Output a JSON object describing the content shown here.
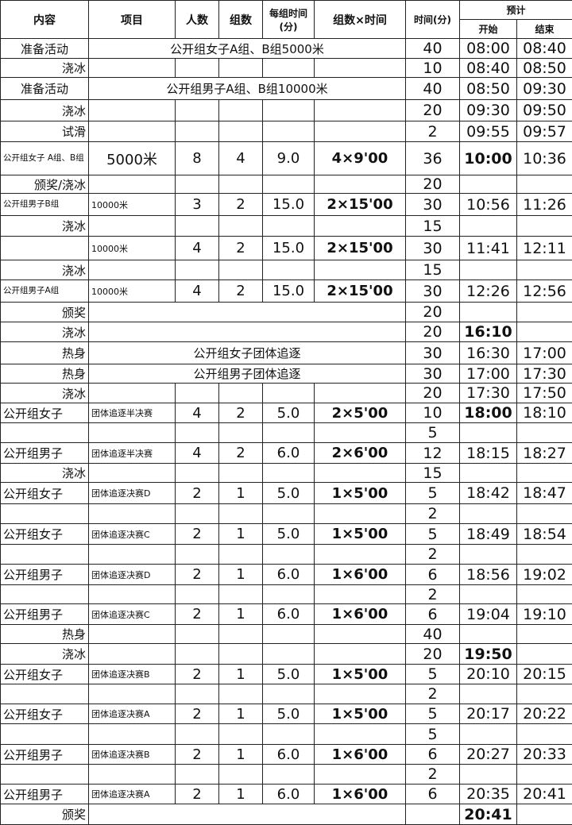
{
  "header": {
    "content": "内容",
    "item": "项目",
    "people": "人数",
    "groups": "组数",
    "per_group_time_1": "每组时间",
    "per_group_time_2": "(分)",
    "groups_x_time": "组数×时间",
    "time": "时间(分)",
    "estimate": "预计",
    "start": "开始",
    "end": "结束"
  },
  "rows": [
    {
      "content": "准备活动",
      "event": "公开组女子A组、B组5000米",
      "time": "40",
      "start": "08:00",
      "end": "08:40"
    },
    {
      "content": "浇冰",
      "time": "10",
      "start": "08:40",
      "end": "08:50"
    },
    {
      "content": "准备活动",
      "event": "公开组男子A组、B组10000米",
      "time": "40",
      "start": "08:50",
      "end": "09:30"
    },
    {
      "content": "浇冰",
      "time": "20",
      "start": "09:30",
      "end": "09:50"
    },
    {
      "content": "试滑",
      "time": "2",
      "start": "09:55",
      "end": "09:57"
    },
    {
      "content": "公开组女子 A组、B组",
      "item": "5000米",
      "people": "8",
      "groups": "4",
      "per": "9.0",
      "gx": "4×9'00",
      "time": "36",
      "start": "10:00",
      "start_bold": true,
      "end": "10:36"
    },
    {
      "content": "颁奖/浇冰",
      "time": "20"
    },
    {
      "content": "公开组男子B组",
      "item": "10000米",
      "people": "3",
      "groups": "2",
      "per": "15.0",
      "gx": "2×15'00",
      "time": "30",
      "start": "10:56",
      "end": "11:26"
    },
    {
      "content": "浇冰",
      "time": "15"
    },
    {
      "content": "",
      "item": "10000米",
      "people": "4",
      "groups": "2",
      "per": "15.0",
      "gx": "2×15'00",
      "time": "30",
      "start": "11:41",
      "end": "12:11"
    },
    {
      "content": "浇冰",
      "time": "15"
    },
    {
      "content": "公开组男子A组",
      "item": "10000米",
      "people": "4",
      "groups": "2",
      "per": "15.0",
      "gx": "2×15'00",
      "time": "30",
      "start": "12:26",
      "end": "12:56"
    },
    {
      "content": "颁奖",
      "event": "",
      "time": "20"
    },
    {
      "content": "浇冰",
      "event": "",
      "time": "20",
      "start": "16:10",
      "start_bold": true
    },
    {
      "content": "热身",
      "event": "公开组女子团体追逐",
      "time": "30",
      "start": "16:30",
      "end": "17:00"
    },
    {
      "content": "热身",
      "event": "公开组男子团体追逐",
      "time": "30",
      "start": "17:00",
      "end": "17:30"
    },
    {
      "content": "浇冰",
      "time": "20",
      "start": "17:30",
      "end": "17:50"
    },
    {
      "content": "公开组女子",
      "item": "团体追逐半决赛",
      "people": "4",
      "groups": "2",
      "per": "5.0",
      "gx": "2×5'00",
      "time": "10",
      "start": "18:00",
      "start_bold": true,
      "end": "18:10"
    },
    {
      "content": "",
      "time": "5"
    },
    {
      "content": "公开组男子",
      "item": "团体追逐半决赛",
      "people": "4",
      "groups": "2",
      "per": "6.0",
      "gx": "2×6'00",
      "time": "12",
      "start": "18:15",
      "end": "18:27"
    },
    {
      "content": "浇冰",
      "time": "15"
    },
    {
      "content": "公开组女子",
      "item": "团体追逐决赛D",
      "people": "2",
      "groups": "1",
      "per": "5.0",
      "gx": "1×5'00",
      "time": "5",
      "start": "18:42",
      "end": "18:47"
    },
    {
      "content": "",
      "time": "2"
    },
    {
      "content": "公开组女子",
      "item": "团体追逐决赛C",
      "people": "2",
      "groups": "1",
      "per": "5.0",
      "gx": "1×5'00",
      "time": "5",
      "start": "18:49",
      "end": "18:54"
    },
    {
      "content": "",
      "time": "2"
    },
    {
      "content": "公开组男子",
      "item": "团体追逐决赛D",
      "people": "2",
      "groups": "1",
      "per": "6.0",
      "gx": "1×6'00",
      "time": "6",
      "start": "18:56",
      "end": "19:02"
    },
    {
      "content": "",
      "time": "2"
    },
    {
      "content": "公开组男子",
      "item": "团体追逐决赛C",
      "people": "2",
      "groups": "1",
      "per": "6.0",
      "gx": "1×6'00",
      "time": "6",
      "start": "19:04",
      "end": "19:10"
    },
    {
      "content": "热身",
      "time": "40"
    },
    {
      "content": "浇冰",
      "time": "20",
      "start": "19:50",
      "start_bold": true
    },
    {
      "content": "公开组女子",
      "item": "团体追逐决赛B",
      "people": "2",
      "groups": "1",
      "per": "5.0",
      "gx": "1×5'00",
      "time": "5",
      "start": "20:10",
      "end": "20:15"
    },
    {
      "content": "",
      "time": "2"
    },
    {
      "content": "公开组女子",
      "item": "团体追逐决赛A",
      "people": "2",
      "groups": "1",
      "per": "5.0",
      "gx": "1×5'00",
      "time": "5",
      "start": "20:17",
      "end": "20:22"
    },
    {
      "content": "",
      "time": "5"
    },
    {
      "content": "公开组男子",
      "item": "团体追逐决赛B",
      "people": "2",
      "groups": "1",
      "per": "6.0",
      "gx": "1×6'00",
      "time": "6",
      "start": "20:27",
      "end": "20:33"
    },
    {
      "content": "",
      "time": "2"
    },
    {
      "content": "公开组男子",
      "item": "团体追逐决赛A",
      "people": "2",
      "groups": "1",
      "per": "6.0",
      "gx": "1×6'00",
      "time": "6",
      "start": "20:35",
      "end": "20:41"
    },
    {
      "content": "颁奖",
      "event": "",
      "time": "",
      "start": "20:41",
      "start_bold": true
    }
  ]
}
